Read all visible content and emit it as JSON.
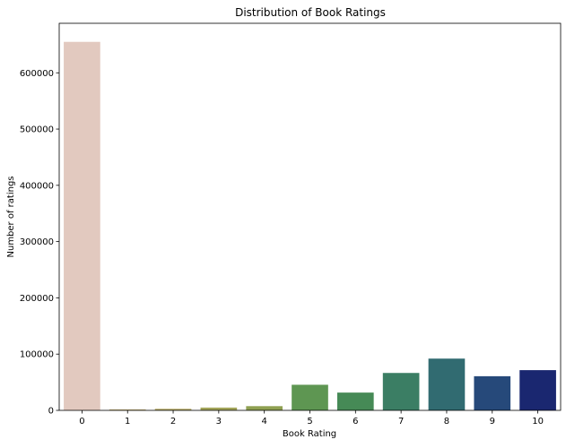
{
  "chart_data": {
    "type": "bar",
    "title": "Distribution of Book Ratings",
    "xlabel": "Book Rating",
    "ylabel": "Number of ratings",
    "categories": [
      "0",
      "1",
      "2",
      "3",
      "4",
      "5",
      "6",
      "7",
      "8",
      "9",
      "10"
    ],
    "values": [
      655000,
      1800,
      2800,
      5000,
      7500,
      45500,
      31600,
      66500,
      92000,
      60700,
      71500
    ],
    "colors": [
      "#e2c9bf",
      "#c8b67e",
      "#b5a965",
      "#a3a55a",
      "#8fa052",
      "#5e9652",
      "#468a56",
      "#3b7e64",
      "#316b71",
      "#26497a",
      "#1a2770"
    ],
    "yticks": [
      0,
      100000,
      200000,
      300000,
      400000,
      500000,
      600000
    ],
    "ytick_labels": [
      "0",
      "100000",
      "200000",
      "300000",
      "400000",
      "500000",
      "600000"
    ],
    "ylim": [
      0,
      688000
    ],
    "grid": false,
    "legend": "none"
  }
}
